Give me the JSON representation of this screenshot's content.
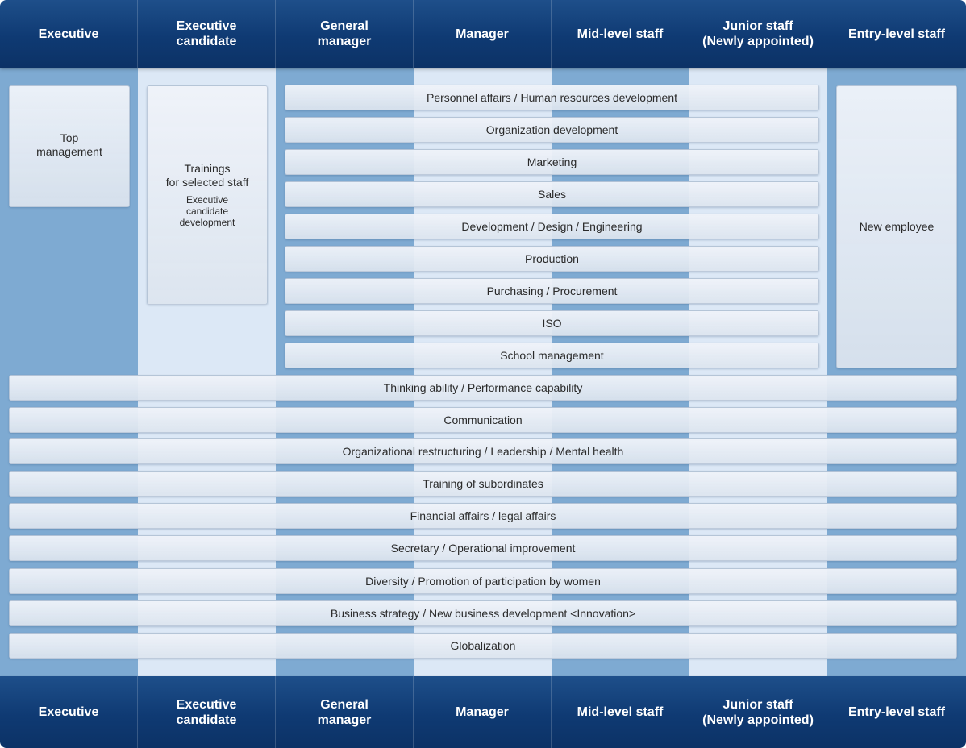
{
  "columns": [
    "Executive",
    "Executive\ncandidate",
    "General\nmanager",
    "Manager",
    "Mid-level staff",
    "Junior staff\n(Newly appointed)",
    "Entry-level staff"
  ],
  "top_management": "Top\nmanagement",
  "selected_staff": {
    "title": "Trainings\nfor selected staff",
    "subtitle": "Executive\ncandidate\ndevelopment"
  },
  "new_employee": "New employee",
  "specialist_courses": [
    "Personnel affairs / Human resources development",
    "Organization development",
    "Marketing",
    "Sales",
    "Development / Design / Engineering",
    "Production",
    "Purchasing / Procurement",
    "ISO",
    "School management"
  ],
  "common_courses": [
    "Thinking ability / Performance capability",
    "Communication",
    "Organizational restructuring / Leadership / Mental health",
    "Training of subordinates",
    "Financial affairs / legal affairs",
    "Secretary / Operational improvement",
    "Diversity / Promotion of participation by women",
    "Business strategy / New business development <Innovation>",
    "Globalization"
  ],
  "colors": {
    "header": "#0f3a73",
    "column_dark": "#7eaad2",
    "column_light": "#dce8f6",
    "box": "#e6ecf4"
  }
}
